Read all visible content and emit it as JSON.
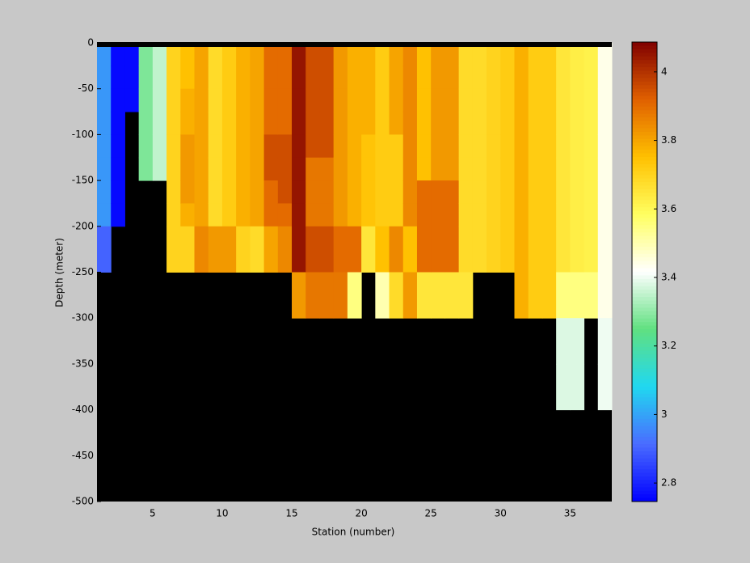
{
  "chart_data": {
    "type": "heatmap",
    "x_label": "Station (number)",
    "y_label": "Depth (meter)",
    "x": [
      1,
      2,
      3,
      4,
      5,
      6,
      7,
      8,
      9,
      10,
      11,
      12,
      13,
      14,
      15,
      16,
      17,
      18,
      19,
      20,
      21,
      22,
      23,
      24,
      25,
      26,
      27,
      28,
      29,
      30,
      31,
      32,
      33,
      34,
      35,
      36,
      37
    ],
    "y_edges": [
      0,
      -25,
      -50,
      -75,
      -100,
      -125,
      -150,
      -175,
      -200,
      -250,
      -300,
      -350,
      -400
    ],
    "values": [
      [
        2.98,
        2.98,
        2.98,
        2.98,
        2.98,
        2.98,
        2.98,
        2.98,
        2.9,
        null,
        null,
        null
      ],
      [
        2.76,
        2.76,
        2.76,
        2.76,
        2.76,
        2.76,
        2.76,
        2.76,
        null,
        null,
        null,
        null
      ],
      [
        2.76,
        2.76,
        2.76,
        null,
        null,
        null,
        null,
        null,
        null,
        null,
        null,
        null
      ],
      [
        3.28,
        3.28,
        3.28,
        3.28,
        3.28,
        3.28,
        null,
        null,
        null,
        null,
        null,
        null
      ],
      [
        3.35,
        3.35,
        3.35,
        3.35,
        3.35,
        3.35,
        null,
        null,
        null,
        null,
        null,
        null
      ],
      [
        3.7,
        3.7,
        3.7,
        3.7,
        3.7,
        3.7,
        3.7,
        3.7,
        3.7,
        null,
        null,
        null
      ],
      [
        3.75,
        3.75,
        3.78,
        3.78,
        3.82,
        3.82,
        3.82,
        3.78,
        3.7,
        null,
        null,
        null
      ],
      [
        3.8,
        3.8,
        3.8,
        3.8,
        3.8,
        3.8,
        3.8,
        3.8,
        3.85,
        null,
        null,
        null
      ],
      [
        3.68,
        3.68,
        3.68,
        3.68,
        3.68,
        3.68,
        3.68,
        3.68,
        3.82,
        null,
        null,
        null
      ],
      [
        3.72,
        3.72,
        3.72,
        3.72,
        3.72,
        3.72,
        3.72,
        3.72,
        3.82,
        null,
        null,
        null
      ],
      [
        3.78,
        3.78,
        3.78,
        3.78,
        3.78,
        3.78,
        3.78,
        3.78,
        3.7,
        null,
        null,
        null
      ],
      [
        3.8,
        3.8,
        3.8,
        3.8,
        3.8,
        3.8,
        3.8,
        3.8,
        3.68,
        null,
        null,
        null
      ],
      [
        3.9,
        3.9,
        3.9,
        3.9,
        3.95,
        3.95,
        3.9,
        3.9,
        3.8,
        null,
        null,
        null
      ],
      [
        3.9,
        3.9,
        3.9,
        3.9,
        3.95,
        3.95,
        3.95,
        3.9,
        3.85,
        null,
        null,
        null
      ],
      [
        4.05,
        4.05,
        4.05,
        4.05,
        4.05,
        4.05,
        4.05,
        4.05,
        4.05,
        3.82,
        null,
        null
      ],
      [
        3.95,
        3.95,
        3.95,
        3.95,
        3.95,
        3.88,
        3.88,
        3.88,
        3.95,
        3.88,
        null,
        null
      ],
      [
        3.95,
        3.95,
        3.95,
        3.95,
        3.95,
        3.88,
        3.88,
        3.88,
        3.95,
        3.88,
        null,
        null
      ],
      [
        3.82,
        3.82,
        3.82,
        3.82,
        3.82,
        3.82,
        3.82,
        3.82,
        3.9,
        3.88,
        null,
        null
      ],
      [
        3.78,
        3.78,
        3.78,
        3.78,
        3.78,
        3.78,
        3.78,
        3.78,
        3.9,
        3.55,
        null,
        null
      ],
      [
        3.78,
        3.78,
        3.78,
        3.78,
        3.74,
        3.74,
        3.74,
        3.74,
        3.65,
        null,
        null,
        null
      ],
      [
        3.72,
        3.72,
        3.72,
        3.72,
        3.72,
        3.72,
        3.72,
        3.72,
        3.75,
        3.5,
        null,
        null
      ],
      [
        3.8,
        3.8,
        3.8,
        3.8,
        3.72,
        3.72,
        3.72,
        3.72,
        3.85,
        3.68,
        null,
        null
      ],
      [
        3.85,
        3.85,
        3.85,
        3.85,
        3.85,
        3.85,
        3.85,
        3.85,
        3.75,
        3.82,
        null,
        null
      ],
      [
        3.75,
        3.75,
        3.75,
        3.75,
        3.75,
        3.75,
        3.9,
        3.9,
        3.9,
        3.65,
        null,
        null
      ],
      [
        3.82,
        3.82,
        3.82,
        3.82,
        3.82,
        3.82,
        3.9,
        3.9,
        3.9,
        3.65,
        null,
        null
      ],
      [
        3.82,
        3.82,
        3.82,
        3.82,
        3.82,
        3.82,
        3.9,
        3.9,
        3.9,
        3.65,
        null,
        null
      ],
      [
        3.68,
        3.68,
        3.68,
        3.68,
        3.68,
        3.68,
        3.68,
        3.68,
        3.68,
        3.65,
        null,
        null
      ],
      [
        3.68,
        3.68,
        3.68,
        3.68,
        3.68,
        3.68,
        3.68,
        3.68,
        3.68,
        null,
        null,
        null
      ],
      [
        3.7,
        3.7,
        3.7,
        3.7,
        3.7,
        3.7,
        3.7,
        3.7,
        3.7,
        null,
        null,
        null
      ],
      [
        3.72,
        3.72,
        3.72,
        3.72,
        3.72,
        3.72,
        3.72,
        3.72,
        3.72,
        null,
        null,
        null
      ],
      [
        3.78,
        3.78,
        3.78,
        3.78,
        3.78,
        3.78,
        3.78,
        3.78,
        3.78,
        3.78,
        null,
        null
      ],
      [
        3.72,
        3.72,
        3.72,
        3.72,
        3.72,
        3.72,
        3.72,
        3.72,
        3.72,
        3.72,
        null,
        null
      ],
      [
        3.72,
        3.72,
        3.72,
        3.72,
        3.72,
        3.72,
        3.72,
        3.72,
        3.72,
        3.72,
        null,
        null
      ],
      [
        3.65,
        3.65,
        3.65,
        3.65,
        3.65,
        3.65,
        3.65,
        3.65,
        3.65,
        3.55,
        3.38,
        3.38
      ],
      [
        3.63,
        3.63,
        3.63,
        3.63,
        3.63,
        3.63,
        3.63,
        3.63,
        3.63,
        3.55,
        3.38,
        3.38
      ],
      [
        3.62,
        3.62,
        3.62,
        3.62,
        3.62,
        3.62,
        3.62,
        3.62,
        3.62,
        3.55,
        null,
        null
      ],
      [
        3.44,
        3.44,
        3.44,
        3.44,
        3.44,
        3.44,
        3.44,
        3.44,
        3.44,
        3.44,
        3.4,
        3.4
      ]
    ],
    "xlim": [
      1,
      38
    ],
    "ylim": [
      -500,
      0
    ],
    "xticks": [
      5,
      10,
      15,
      20,
      25,
      30,
      35
    ],
    "yticks": [
      0,
      -50,
      -100,
      -150,
      -200,
      -250,
      -300,
      -350,
      -400,
      -450,
      -500
    ],
    "clim": [
      2.746,
      4.087
    ],
    "cticks": [
      2.8,
      3,
      3.2,
      3.4,
      3.6,
      3.8,
      4
    ],
    "colormap": [
      "#0000ff",
      "#4a6cff",
      "#20d8f0",
      "#60e080",
      "#ffffff",
      "#ffff60",
      "#ffc000",
      "#e06000",
      "#800000"
    ],
    "missing_color": "#000000"
  }
}
